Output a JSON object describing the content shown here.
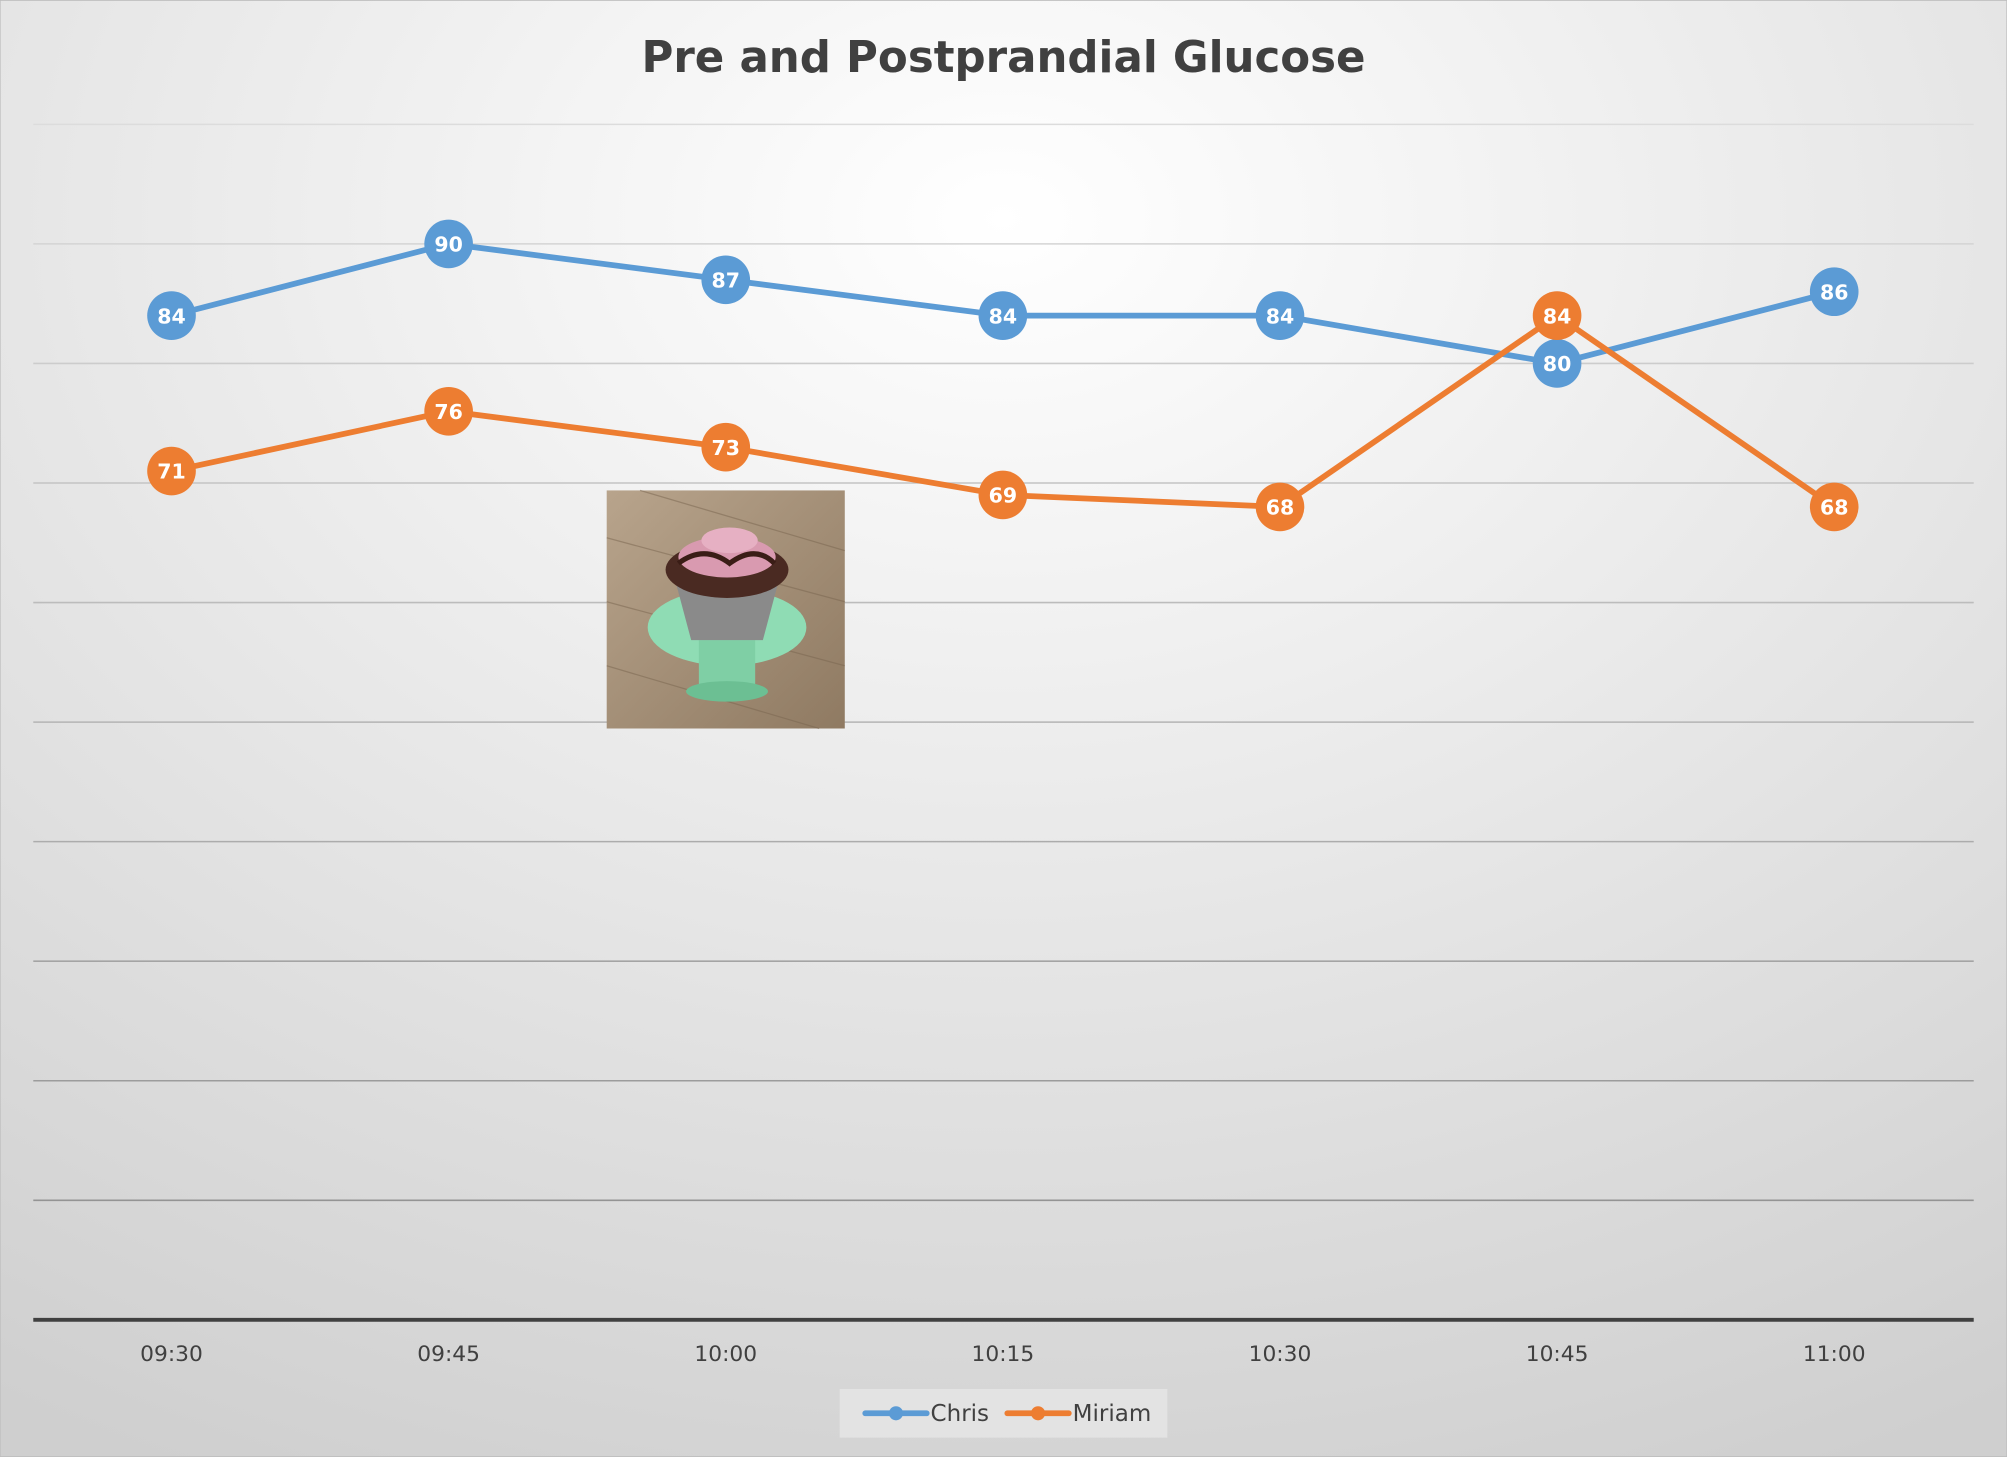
{
  "chart_data": {
    "type": "line",
    "title": "Pre and Postprandial Glucose",
    "categories": [
      "09:30",
      "09:45",
      "10:00",
      "10:15",
      "10:30",
      "10:45",
      "11:00"
    ],
    "series": [
      {
        "name": "Chris",
        "values": [
          84,
          90,
          87,
          84,
          84,
          80,
          86
        ],
        "color": "#5B9BD5"
      },
      {
        "name": "Miriam",
        "values": [
          71,
          76,
          73,
          69,
          68,
          84,
          68
        ],
        "color": "#ED7D31"
      }
    ],
    "ylim": [
      0,
      100
    ],
    "ygrid_step": 10,
    "grid": true,
    "y_tick_labels_shown": false,
    "data_labels": true,
    "legend_placement": "bottom",
    "annotation_image": "cupcake-photo"
  }
}
